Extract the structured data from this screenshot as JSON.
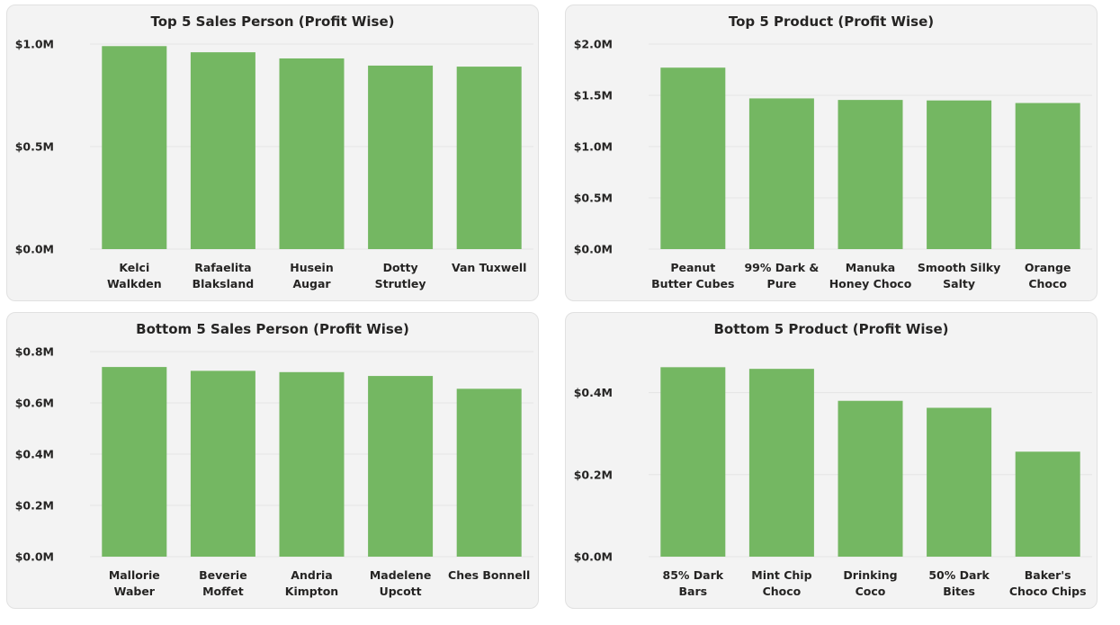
{
  "colors": {
    "bar": "#74b762",
    "panel_bg": "#f3f3f3",
    "text": "#252423",
    "grid": "#e4e4e4"
  },
  "chart_data": [
    {
      "type": "bar",
      "title": "Top 5 Sales Person (Profit Wise)",
      "categories": [
        [
          "Kelci",
          "Walkden"
        ],
        [
          "Rafaelita",
          "Blaksland"
        ],
        [
          "Husein",
          "Augar"
        ],
        [
          "Dotty",
          "Strutley"
        ],
        [
          "Van Tuxwell"
        ]
      ],
      "values": [
        0.99,
        0.96,
        0.93,
        0.895,
        0.89
      ],
      "yticks": [
        0,
        0.5,
        1.0
      ],
      "ytick_labels": [
        "$0.0M",
        "$0.5M",
        "$1.0M"
      ],
      "ylim": [
        0,
        1.0
      ],
      "grid": true
    },
    {
      "type": "bar",
      "title": "Top 5 Product (Profit Wise)",
      "categories": [
        [
          "Peanut",
          "Butter Cubes"
        ],
        [
          "99% Dark &",
          "Pure"
        ],
        [
          "Manuka",
          "Honey Choco"
        ],
        [
          "Smooth Silky",
          "Salty"
        ],
        [
          "Orange",
          "Choco"
        ]
      ],
      "values": [
        1.77,
        1.47,
        1.455,
        1.45,
        1.425
      ],
      "yticks": [
        0,
        0.5,
        1.0,
        1.5,
        2.0
      ],
      "ytick_labels": [
        "$0.0M",
        "$0.5M",
        "$1.0M",
        "$1.5M",
        "$2.0M"
      ],
      "ylim": [
        0,
        2.0
      ],
      "grid": true
    },
    {
      "type": "bar",
      "title": "Bottom 5 Sales Person (Profit Wise)",
      "categories": [
        [
          "Mallorie",
          "Waber"
        ],
        [
          "Beverie",
          "Moffet"
        ],
        [
          "Andria",
          "Kimpton"
        ],
        [
          "Madelene",
          "Upcott"
        ],
        [
          "Ches Bonnell"
        ]
      ],
      "values": [
        0.74,
        0.725,
        0.72,
        0.705,
        0.655
      ],
      "yticks": [
        0,
        0.2,
        0.4,
        0.6,
        0.8
      ],
      "ytick_labels": [
        "$0.0M",
        "$0.2M",
        "$0.4M",
        "$0.6M",
        "$0.8M"
      ],
      "ylim": [
        0,
        0.8
      ],
      "grid": true
    },
    {
      "type": "bar",
      "title": "Bottom 5 Product (Profit Wise)",
      "categories": [
        [
          "85% Dark",
          "Bars"
        ],
        [
          "Mint Chip",
          "Choco"
        ],
        [
          "Drinking",
          "Coco"
        ],
        [
          "50% Dark",
          "Bites"
        ],
        [
          "Baker's",
          "Choco Chips"
        ]
      ],
      "values": [
        0.462,
        0.458,
        0.38,
        0.363,
        0.256
      ],
      "yticks": [
        0,
        0.2,
        0.4
      ],
      "ytick_labels": [
        "$0.0M",
        "$0.2M",
        "$0.4M"
      ],
      "ylim": [
        0,
        0.5
      ],
      "grid": true
    }
  ]
}
